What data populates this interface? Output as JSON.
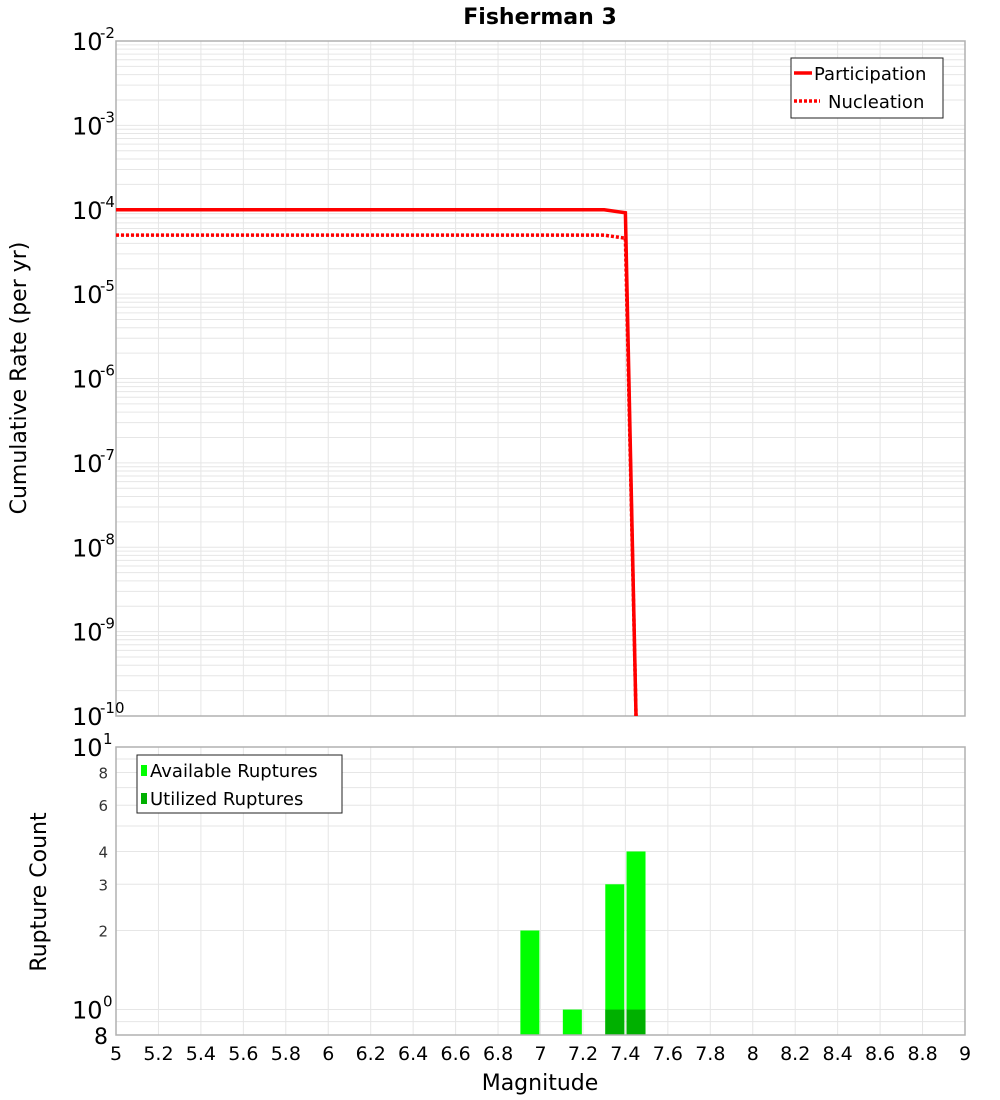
{
  "chart_data": [
    {
      "type": "line",
      "title": "Fisherman 3",
      "xlabel": "",
      "ylabel": "Cumulative Rate (per yr)",
      "xlim": [
        5,
        9
      ],
      "ylim": [
        1e-10,
        0.01
      ],
      "yscale": "log",
      "grid": true,
      "legend_position": "top-right",
      "y_ticks": [
        "10^-2",
        "10^-3",
        "10^-4",
        "10^-5",
        "10^-6",
        "10^-7",
        "10^-8",
        "10^-9",
        "10^-10"
      ],
      "series": [
        {
          "name": "Participation",
          "style": "solid",
          "color": "#ff0000",
          "x": [
            5.0,
            7.3,
            7.4,
            7.45
          ],
          "y": [
            0.0001,
            0.0001,
            9.2e-05,
            1e-10
          ]
        },
        {
          "name": "Nucleation",
          "style": "dotted",
          "color": "#ff0000",
          "x": [
            5.0,
            7.3,
            7.4,
            7.45
          ],
          "y": [
            5e-05,
            5e-05,
            4.6e-05,
            1e-10
          ]
        }
      ]
    },
    {
      "type": "bar",
      "title": "",
      "xlabel": "Magnitude",
      "ylabel": "Rupture Count",
      "xlim": [
        5,
        9
      ],
      "ylim": [
        0.8,
        10
      ],
      "yscale": "log",
      "grid": true,
      "legend_position": "top-left",
      "x_ticks": [
        "5",
        "5.2",
        "5.4",
        "5.6",
        "5.8",
        "6",
        "6.2",
        "6.4",
        "6.6",
        "6.8",
        "7",
        "7.2",
        "7.4",
        "7.6",
        "7.8",
        "8",
        "8.2",
        "8.4",
        "8.6",
        "8.8",
        "9"
      ],
      "y_ticks": [
        "10^1",
        "8",
        "6",
        "4",
        "3",
        "2",
        "10^0",
        "8"
      ],
      "categories": [
        6.95,
        7.15,
        7.35,
        7.45
      ],
      "series": [
        {
          "name": "Available Ruptures",
          "color": "#00ff00",
          "values": [
            2,
            1,
            3,
            4
          ]
        },
        {
          "name": "Utilized Ruptures",
          "color": "#00b000",
          "values": [
            0,
            0,
            1,
            1
          ]
        }
      ]
    }
  ],
  "labels": {
    "title": "Fisherman 3",
    "top_ylabel": "Cumulative Rate (per yr)",
    "bottom_ylabel": "Rupture Count",
    "xlabel": "Magnitude",
    "legend_top": [
      "Participation",
      "Nucleation"
    ],
    "legend_bottom": [
      "Available Ruptures",
      "Utilized Ruptures"
    ]
  }
}
